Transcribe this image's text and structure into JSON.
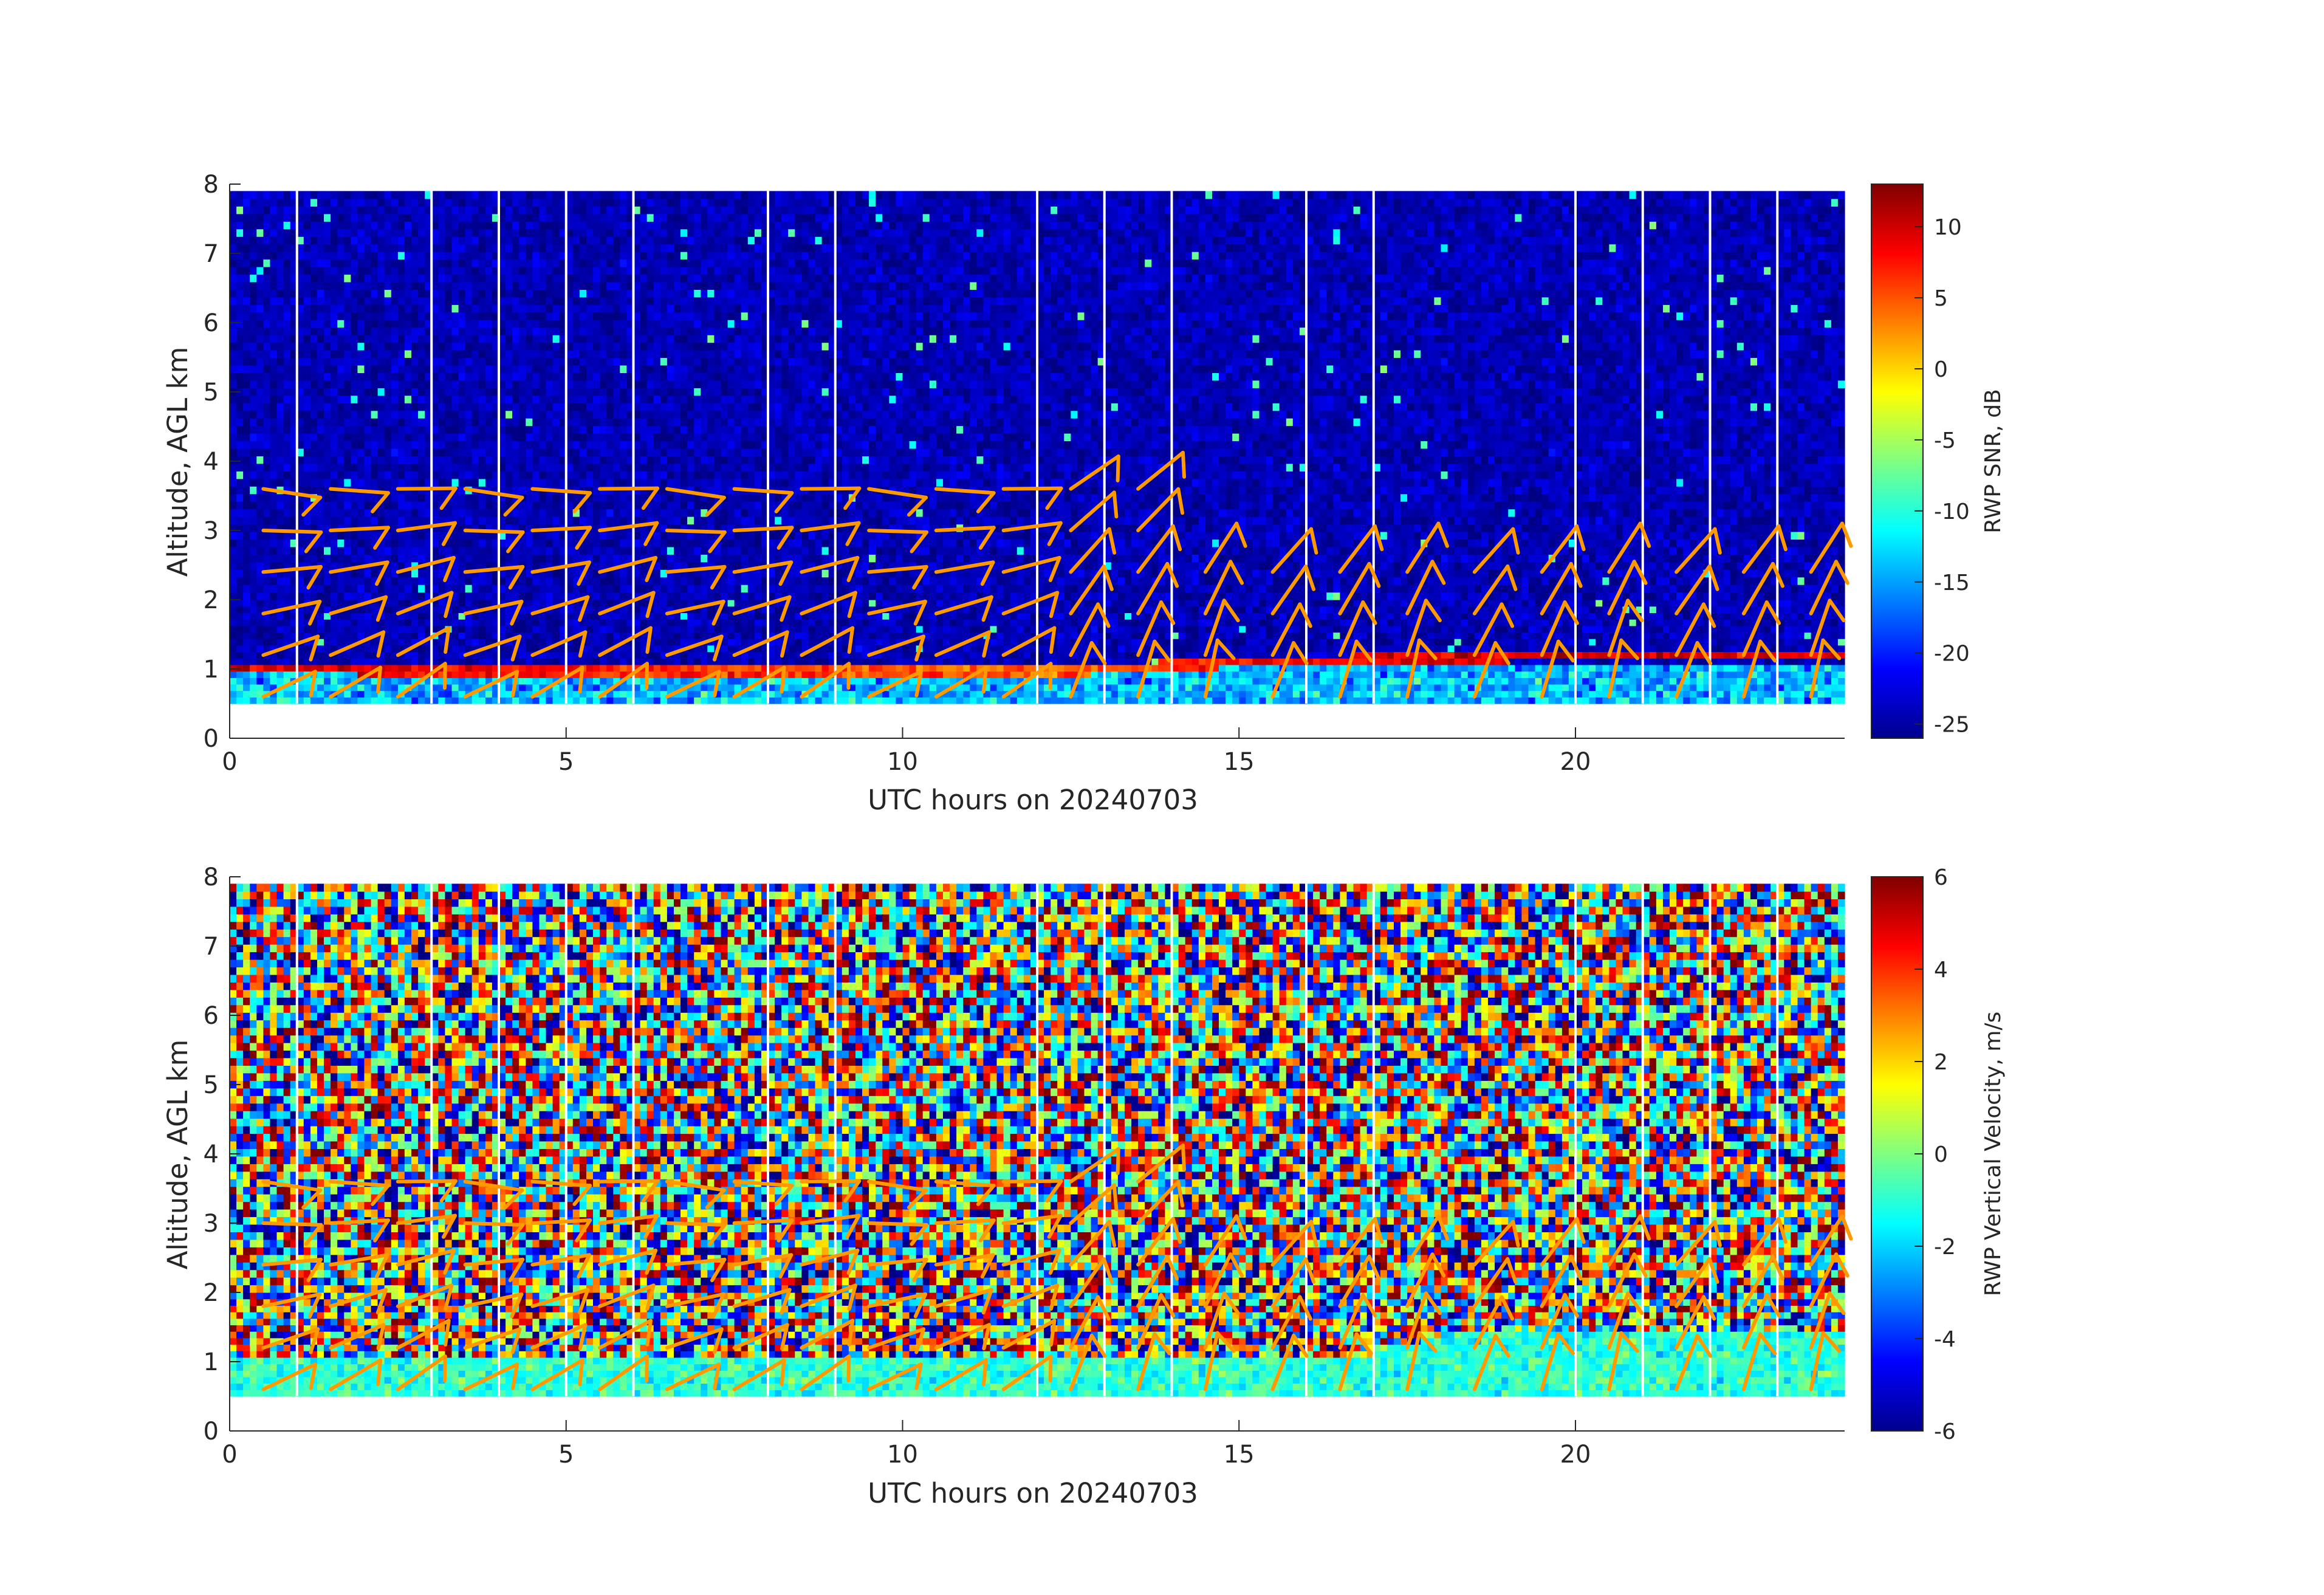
{
  "chart_data": [
    {
      "type": "heatmap",
      "xlabel": "UTC hours on 20240703",
      "ylabel": "Altitude, AGL km",
      "xlim": [
        0,
        24
      ],
      "ylim": [
        0,
        8
      ],
      "xticks": [
        0,
        5,
        10,
        15,
        20
      ],
      "yticks": [
        0,
        1,
        2,
        3,
        4,
        5,
        6,
        7,
        8
      ],
      "colorbar": {
        "label": "RWP SNR, dB",
        "range": [
          -26,
          13
        ],
        "ticks": [
          10,
          5,
          0,
          -5,
          -10,
          -15,
          -20,
          -25
        ],
        "colormap": "jet"
      },
      "data_altitude_range_km": [
        0.5,
        7.9
      ],
      "features": {
        "background_snr_db": -24,
        "boundary_layer_snr_db": -14,
        "bright_layer": [
          {
            "hour": 0,
            "altitude_km": 1.0,
            "snr_db": 10
          },
          {
            "hour": 12,
            "altitude_km": 0.95,
            "snr_db": 4
          },
          {
            "hour": 15,
            "altitude_km": 1.1,
            "snr_db": 8
          },
          {
            "hour": 20,
            "altitude_km": 1.2,
            "snr_db": 10
          },
          {
            "hour": 24,
            "altitude_km": 1.2,
            "snr_db": 9
          }
        ]
      },
      "data_gap_hours": [
        1,
        3,
        4,
        5,
        6,
        8,
        9,
        12,
        13,
        14,
        16,
        17,
        20,
        21,
        22,
        23
      ]
    },
    {
      "type": "heatmap",
      "xlabel": "UTC hours on 20240703",
      "ylabel": "Altitude, AGL km",
      "xlim": [
        0,
        24
      ],
      "ylim": [
        0,
        8
      ],
      "xticks": [
        0,
        5,
        10,
        15,
        20
      ],
      "yticks": [
        0,
        1,
        2,
        3,
        4,
        5,
        6,
        7,
        8
      ],
      "colorbar": {
        "label": "RWP Vertical Velocity, m/s",
        "range": [
          -6,
          6
        ],
        "ticks": [
          6,
          4,
          2,
          0,
          -2,
          -4,
          -6
        ],
        "colormap": "jet"
      },
      "data_altitude_range_km": [
        0.5,
        7.9
      ],
      "features": {
        "upper_field": "noisy, mixed -6 to 6 m/s",
        "boundary_layer_velocity_ms": -1,
        "boundary_layer_top_km": [
          {
            "hour": 0,
            "altitude_km": 1.1
          },
          {
            "hour": 17,
            "altitude_km": 1.1
          },
          {
            "hour": 18,
            "altitude_km": 1.4
          },
          {
            "hour": 24,
            "altitude_km": 1.4
          }
        ]
      },
      "data_gap_hours": [
        1,
        3,
        4,
        5,
        6,
        8,
        9,
        12,
        13,
        14,
        16,
        17,
        20,
        21,
        22,
        23
      ]
    }
  ],
  "wind_barbs": {
    "color": "#ff9900",
    "legend": "none",
    "hours": [
      0.5,
      1.5,
      2.5,
      3.5,
      4.5,
      5.5,
      6.5,
      7.5,
      8.5,
      9.5,
      10.5,
      11.5,
      12.5,
      13.5,
      14.5,
      15.5,
      16.5,
      17.5,
      18.5,
      19.5,
      20.5,
      21.5,
      22.5,
      23.5
    ],
    "altitudes_km": [
      0.6,
      1.2,
      1.8,
      2.4,
      3.0,
      3.6
    ]
  }
}
